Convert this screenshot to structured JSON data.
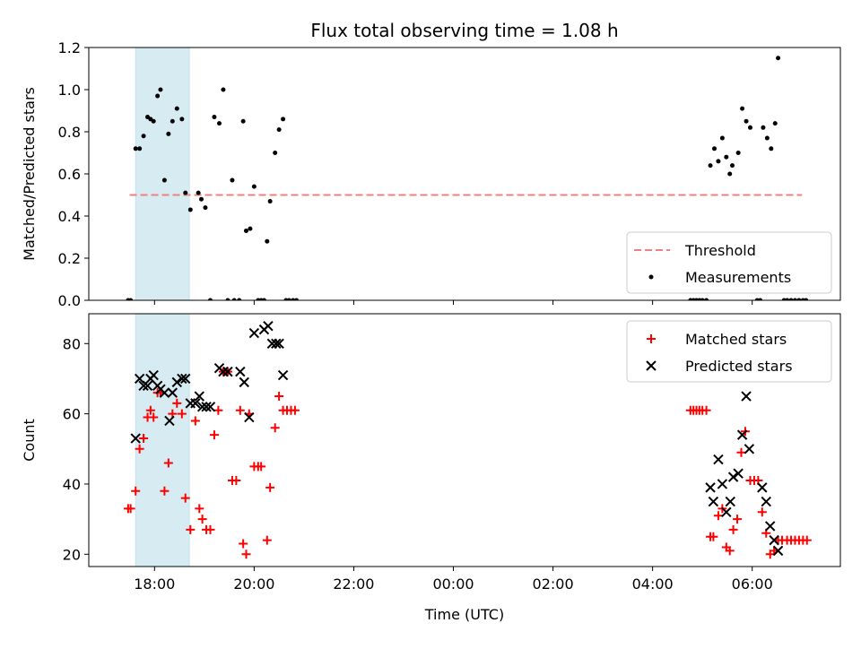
{
  "chart_data": [
    {
      "type": "scatter",
      "title": "Flux total observing time = 1.08 h",
      "ylabel": "Matched/Predicted stars",
      "xlabel": "",
      "ylim": [
        0.0,
        1.2
      ],
      "yticks": [
        "0.0",
        "0.2",
        "0.4",
        "0.6",
        "0.8",
        "1.0",
        "1.2"
      ],
      "x_is_time_hours_since_midnight_previous_day": true,
      "xlim": [
        16.68,
        31.77
      ],
      "shaded_interval": [
        17.62,
        18.7
      ],
      "shaded_color": "#add8e6",
      "threshold": {
        "name": "Threshold",
        "y": 0.5,
        "x_range": [
          "17.5",
          "31.0"
        ],
        "color": "#f08080"
      },
      "legend": {
        "position": "lower-right",
        "entries": [
          "Threshold",
          "Measurements"
        ]
      },
      "series": [
        {
          "name": "Measurements",
          "color": "#000000",
          "points": [
            [
              17.47,
              0.0
            ],
            [
              17.52,
              0.0
            ],
            [
              17.62,
              0.72
            ],
            [
              17.7,
              0.72
            ],
            [
              17.78,
              0.78
            ],
            [
              17.86,
              0.87
            ],
            [
              17.92,
              0.86
            ],
            [
              17.98,
              0.85
            ],
            [
              18.06,
              0.97
            ],
            [
              18.12,
              1.0
            ],
            [
              18.2,
              0.57
            ],
            [
              18.28,
              0.79
            ],
            [
              18.36,
              0.85
            ],
            [
              18.45,
              0.91
            ],
            [
              18.55,
              0.86
            ],
            [
              18.62,
              0.51
            ],
            [
              18.72,
              0.43
            ],
            [
              18.88,
              0.51
            ],
            [
              18.94,
              0.48
            ],
            [
              19.02,
              0.44
            ],
            [
              19.12,
              0.0
            ],
            [
              19.2,
              0.87
            ],
            [
              19.3,
              0.84
            ],
            [
              19.38,
              1.0
            ],
            [
              19.47,
              0.0
            ],
            [
              19.56,
              0.57
            ],
            [
              19.6,
              0.0
            ],
            [
              19.7,
              0.0
            ],
            [
              19.78,
              0.85
            ],
            [
              19.84,
              0.33
            ],
            [
              19.92,
              0.34
            ],
            [
              20.0,
              0.54
            ],
            [
              20.08,
              0.0
            ],
            [
              20.14,
              0.0
            ],
            [
              20.2,
              0.0
            ],
            [
              20.26,
              0.28
            ],
            [
              20.32,
              0.47
            ],
            [
              20.42,
              0.7
            ],
            [
              20.5,
              0.81
            ],
            [
              20.58,
              0.86
            ],
            [
              20.64,
              0.0
            ],
            [
              20.7,
              0.0
            ],
            [
              20.78,
              0.0
            ],
            [
              20.85,
              0.0
            ],
            [
              28.76,
              0.0
            ],
            [
              28.82,
              0.0
            ],
            [
              28.88,
              0.0
            ],
            [
              28.94,
              0.0
            ],
            [
              29.0,
              0.0
            ],
            [
              29.08,
              0.0
            ],
            [
              29.16,
              0.64
            ],
            [
              29.24,
              0.72
            ],
            [
              29.32,
              0.66
            ],
            [
              29.4,
              0.77
            ],
            [
              29.48,
              0.68
            ],
            [
              29.55,
              0.6
            ],
            [
              29.6,
              0.64
            ],
            [
              29.72,
              0.7
            ],
            [
              29.8,
              0.91
            ],
            [
              29.88,
              0.85
            ],
            [
              29.96,
              0.82
            ],
            [
              30.1,
              0.0
            ],
            [
              30.16,
              0.0
            ],
            [
              30.22,
              0.82
            ],
            [
              30.3,
              0.77
            ],
            [
              30.38,
              0.72
            ],
            [
              30.46,
              0.84
            ],
            [
              30.52,
              1.15
            ],
            [
              30.64,
              0.0
            ],
            [
              30.7,
              0.0
            ],
            [
              30.78,
              0.0
            ],
            [
              30.86,
              0.0
            ],
            [
              30.94,
              0.0
            ],
            [
              31.02,
              0.0
            ],
            [
              31.08,
              0.0
            ]
          ]
        }
      ]
    },
    {
      "type": "scatter",
      "title": "",
      "ylabel": "Count",
      "xlabel": "Time (UTC)",
      "ylim": [
        16.5,
        88.5
      ],
      "yticks": [
        "20",
        "40",
        "60",
        "80"
      ],
      "xlim": [
        16.68,
        31.77
      ],
      "xticks": [
        "18:00",
        "20:00",
        "22:00",
        "00:00",
        "02:00",
        "04:00",
        "06:00"
      ],
      "shaded_interval": [
        17.62,
        18.7
      ],
      "shaded_color": "#add8e6",
      "legend": {
        "position": "top-right",
        "entries": [
          "Matched stars",
          "Predicted stars"
        ]
      },
      "series": [
        {
          "name": "Matched stars",
          "marker": "plus",
          "color": "#ff0000",
          "points": [
            [
              17.47,
              33
            ],
            [
              17.52,
              33
            ],
            [
              17.62,
              38
            ],
            [
              17.7,
              50
            ],
            [
              17.78,
              53
            ],
            [
              17.86,
              59
            ],
            [
              17.92,
              61
            ],
            [
              17.98,
              59
            ],
            [
              18.06,
              66
            ],
            [
              18.12,
              66
            ],
            [
              18.2,
              38
            ],
            [
              18.28,
              46
            ],
            [
              18.36,
              60
            ],
            [
              18.45,
              63
            ],
            [
              18.55,
              60
            ],
            [
              18.62,
              36
            ],
            [
              18.72,
              27
            ],
            [
              18.82,
              58
            ],
            [
              18.9,
              33
            ],
            [
              18.96,
              30
            ],
            [
              19.04,
              27
            ],
            [
              19.12,
              27
            ],
            [
              19.2,
              54
            ],
            [
              19.28,
              61
            ],
            [
              19.38,
              72
            ],
            [
              19.47,
              72
            ],
            [
              19.56,
              41
            ],
            [
              19.64,
              41
            ],
            [
              19.72,
              61
            ],
            [
              19.78,
              23
            ],
            [
              19.84,
              20
            ],
            [
              19.9,
              60
            ],
            [
              20.0,
              45
            ],
            [
              20.08,
              45
            ],
            [
              20.14,
              45
            ],
            [
              20.26,
              24
            ],
            [
              20.32,
              39
            ],
            [
              20.42,
              56
            ],
            [
              20.5,
              65
            ],
            [
              20.58,
              61
            ],
            [
              20.66,
              61
            ],
            [
              20.74,
              61
            ],
            [
              20.82,
              61
            ],
            [
              28.76,
              61
            ],
            [
              28.82,
              61
            ],
            [
              28.88,
              61
            ],
            [
              28.94,
              61
            ],
            [
              29.0,
              61
            ],
            [
              29.08,
              61
            ],
            [
              29.16,
              25
            ],
            [
              29.22,
              25
            ],
            [
              29.32,
              31
            ],
            [
              29.4,
              33
            ],
            [
              29.48,
              22
            ],
            [
              29.55,
              21
            ],
            [
              29.62,
              27
            ],
            [
              29.7,
              30
            ],
            [
              29.78,
              49
            ],
            [
              29.86,
              55
            ],
            [
              29.96,
              41
            ],
            [
              30.04,
              41
            ],
            [
              30.12,
              41
            ],
            [
              30.2,
              32
            ],
            [
              30.28,
              26
            ],
            [
              30.36,
              20
            ],
            [
              30.44,
              21
            ],
            [
              30.52,
              24
            ],
            [
              30.6,
              24
            ],
            [
              30.7,
              24
            ],
            [
              30.78,
              24
            ],
            [
              30.86,
              24
            ],
            [
              30.94,
              24
            ],
            [
              31.02,
              24
            ],
            [
              31.1,
              24
            ]
          ]
        },
        {
          "name": "Predicted stars",
          "marker": "x",
          "color": "#000000",
          "points": [
            [
              17.62,
              53
            ],
            [
              17.7,
              70
            ],
            [
              17.78,
              68
            ],
            [
              17.86,
              68
            ],
            [
              17.92,
              70
            ],
            [
              17.98,
              71
            ],
            [
              18.06,
              68
            ],
            [
              18.12,
              67
            ],
            [
              18.2,
              66
            ],
            [
              18.3,
              58
            ],
            [
              18.36,
              66
            ],
            [
              18.45,
              69
            ],
            [
              18.55,
              70
            ],
            [
              18.62,
              70
            ],
            [
              18.72,
              63
            ],
            [
              18.82,
              63
            ],
            [
              18.9,
              65
            ],
            [
              18.96,
              62
            ],
            [
              19.04,
              62
            ],
            [
              19.12,
              62
            ],
            [
              19.3,
              73
            ],
            [
              19.38,
              72
            ],
            [
              19.47,
              72
            ],
            [
              19.72,
              72
            ],
            [
              19.8,
              69
            ],
            [
              19.9,
              59
            ],
            [
              20.0,
              83
            ],
            [
              20.2,
              84
            ],
            [
              20.28,
              85
            ],
            [
              20.36,
              80
            ],
            [
              20.44,
              80
            ],
            [
              20.5,
              80
            ],
            [
              20.58,
              71
            ],
            [
              29.16,
              39
            ],
            [
              29.22,
              35
            ],
            [
              29.32,
              47
            ],
            [
              29.4,
              40
            ],
            [
              29.48,
              32
            ],
            [
              29.56,
              35
            ],
            [
              29.62,
              42
            ],
            [
              29.72,
              43
            ],
            [
              29.8,
              54
            ],
            [
              29.88,
              65
            ],
            [
              29.94,
              50
            ],
            [
              30.2,
              39
            ],
            [
              30.28,
              35
            ],
            [
              30.36,
              28
            ],
            [
              30.44,
              24
            ],
            [
              30.52,
              21
            ]
          ]
        }
      ]
    }
  ]
}
